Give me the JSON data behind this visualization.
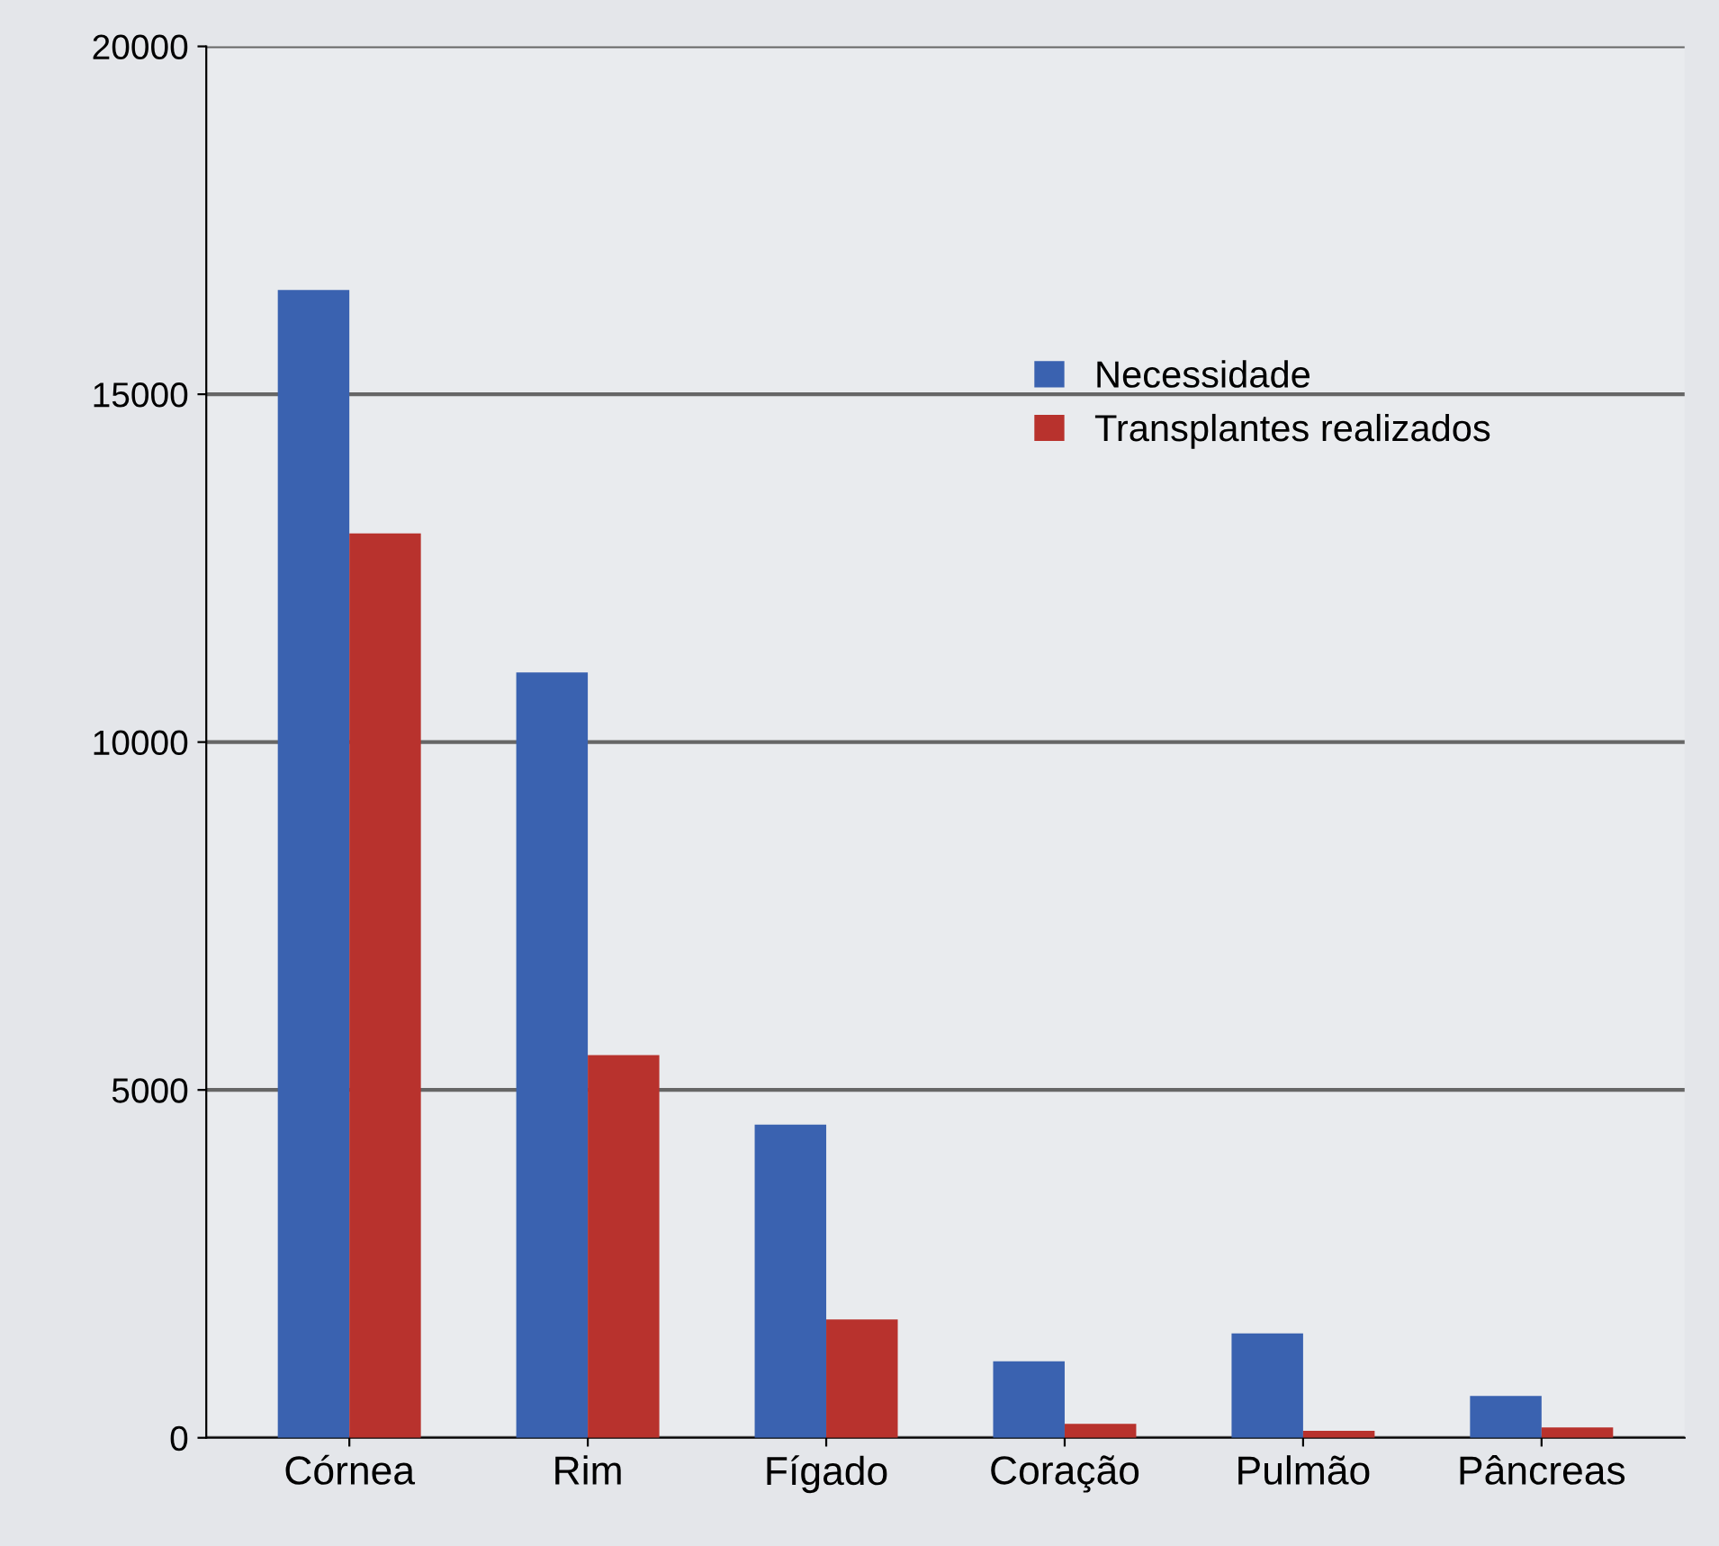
{
  "chart_data": {
    "type": "bar",
    "categories": [
      "Córnea",
      "Rim",
      "Fígado",
      "Coração",
      "Pulmão",
      "Pâncreas"
    ],
    "series": [
      {
        "name": "Necessidade",
        "color": "#3a62b0",
        "values": [
          16500,
          11000,
          4500,
          1100,
          1500,
          600
        ]
      },
      {
        "name": "Transplantes realizados",
        "color": "#b8322d",
        "values": [
          13000,
          5500,
          1700,
          200,
          100,
          150
        ]
      }
    ],
    "ylim": [
      0,
      20000
    ],
    "yticks": [
      0,
      5000,
      10000,
      15000,
      20000
    ],
    "grid": "y",
    "legend": "top right"
  }
}
